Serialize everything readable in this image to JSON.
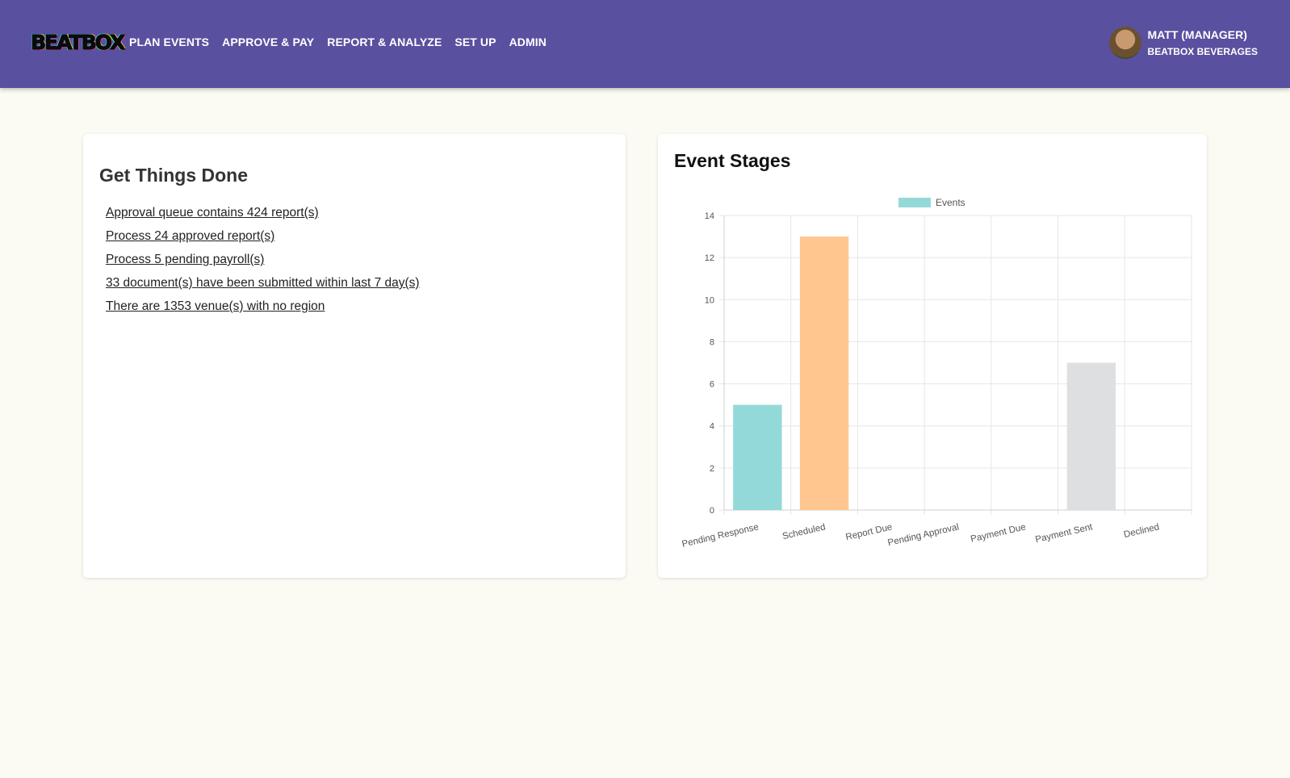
{
  "header": {
    "logo_text": "BEATBOX",
    "nav": [
      {
        "label": "PLAN EVENTS"
      },
      {
        "label": "APPROVE & PAY"
      },
      {
        "label": "REPORT & ANALYZE"
      },
      {
        "label": "SET UP"
      },
      {
        "label": "ADMIN"
      }
    ],
    "user": {
      "name": "MATT (MANAGER)",
      "org": "BEATBOX BEVERAGES"
    },
    "colors": {
      "bar": "#5a50a0",
      "text": "#ffffff"
    }
  },
  "tasks": {
    "title": "Get Things Done",
    "items": [
      "Approval queue contains 424 report(s)",
      "Process 24 approved report(s)",
      "Process 5 pending payroll(s)",
      "33 document(s) have been submitted within last 7 day(s)",
      "There are 1353 venue(s) with no region"
    ]
  },
  "chart": {
    "title": "Event Stages"
  },
  "chart_data": {
    "type": "bar",
    "categories": [
      "Pending Response",
      "Scheduled",
      "Report Due",
      "Pending Approval",
      "Payment Due",
      "Payment Sent",
      "Declined"
    ],
    "series": [
      {
        "name": "Events",
        "values": [
          5,
          13,
          0,
          0,
          0,
          7,
          0
        ]
      }
    ],
    "bar_colors": [
      "#93d9d9",
      "#ffc78f",
      "#93d9d9",
      "#93d9d9",
      "#93d9d9",
      "#dedfe1",
      "#93d9d9"
    ],
    "legend_color": "#93d9d9",
    "ylim": [
      0,
      14
    ],
    "yticks": [
      0,
      2,
      4,
      6,
      8,
      10,
      12,
      14
    ],
    "grid": true,
    "legend_position": "top"
  }
}
